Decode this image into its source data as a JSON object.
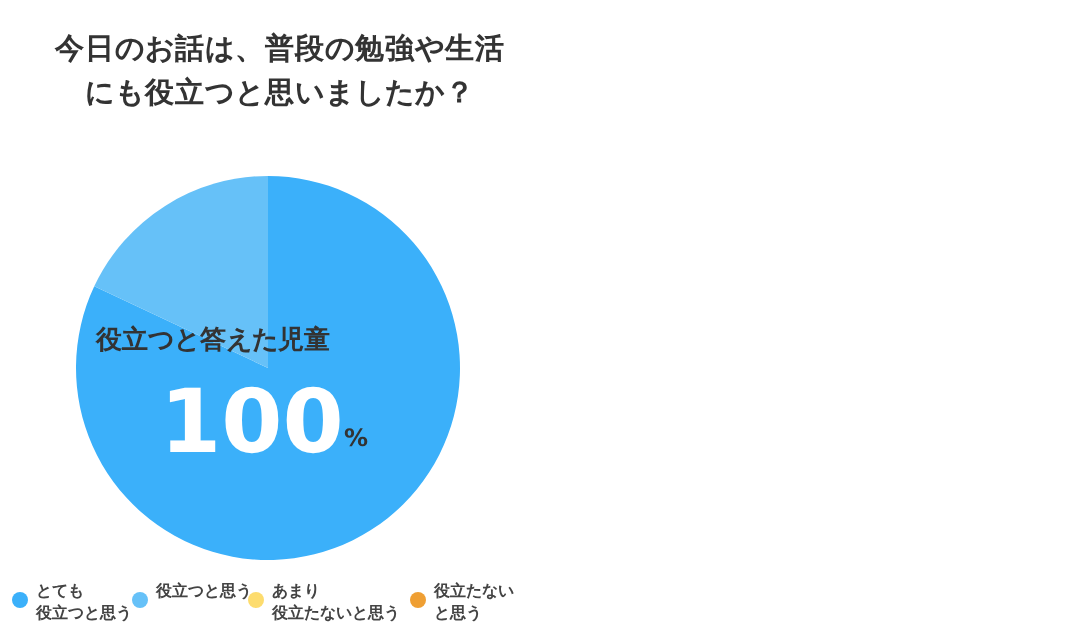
{
  "chart_data": {
    "type": "pie",
    "title": "今日のお話は、普段の勉強や生活にも役立つと思いましたか？",
    "categories": [
      "とても役立つと思う",
      "役立つと思う",
      "あまり役立たないと思う",
      "役立たないと思う"
    ],
    "values": [
      82,
      18,
      0,
      0
    ],
    "colors": [
      "#3bb0fa",
      "#66c1f8",
      "#fddc6e",
      "#ef9f33"
    ],
    "legend": "bottom",
    "annotations": [
      "役立つと答えた児童",
      "100",
      "%"
    ]
  }
}
